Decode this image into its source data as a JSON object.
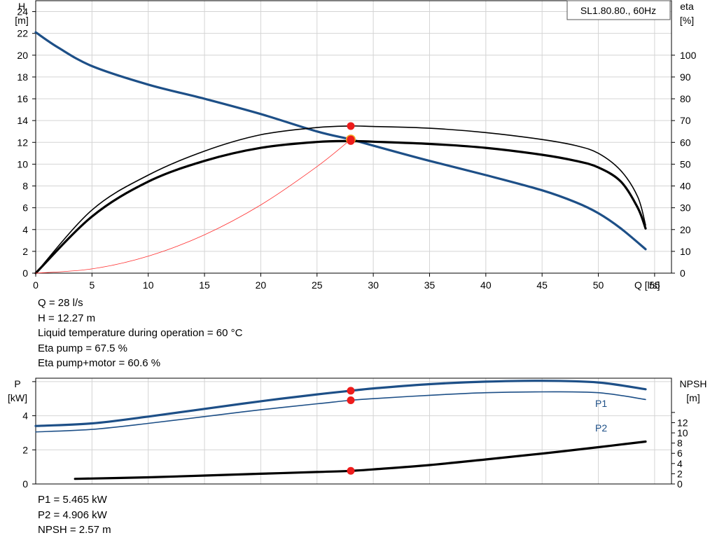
{
  "chart_data": [
    {
      "type": "line",
      "pump_label": "SL1.80.80., 60Hz",
      "ylabel": "H",
      "yunit": "[m]",
      "y2label": "eta",
      "y2unit": "[%]",
      "xlabel": "Q [l/s]",
      "xlim": [
        0,
        56.5
      ],
      "ylim": [
        0,
        25
      ],
      "y2lim": [
        0,
        125
      ],
      "x_ticks": [
        0,
        5,
        10,
        15,
        20,
        25,
        30,
        35,
        40,
        45,
        50,
        55
      ],
      "y_ticks": [
        0,
        2,
        4,
        6,
        8,
        10,
        12,
        14,
        16,
        18,
        20,
        22,
        24
      ],
      "y2_ticks": [
        0,
        10,
        20,
        30,
        40,
        50,
        60,
        70,
        80,
        90,
        100
      ],
      "grid": true,
      "series": [
        {
          "color": "#1d4f87",
          "axis": "left",
          "x": [
            0,
            2,
            5,
            10,
            15,
            20,
            25,
            28,
            30,
            35,
            40,
            45,
            48,
            50,
            52,
            54.2
          ],
          "y": [
            22.1,
            20.7,
            19.0,
            17.3,
            16.0,
            14.6,
            13.0,
            12.27,
            11.7,
            10.3,
            9.0,
            7.6,
            6.5,
            5.5,
            4.1,
            2.2
          ]
        },
        {
          "color": "#000000",
          "axis": "right",
          "x": [
            0,
            5,
            10,
            15,
            20,
            25,
            28,
            30,
            35,
            40,
            45,
            48,
            50,
            52,
            53.5,
            54.2
          ],
          "y": [
            0,
            29,
            45,
            56,
            63.5,
            66.8,
            67.5,
            67.3,
            66.5,
            64.5,
            61.3,
            58.5,
            55.0,
            47.0,
            35.0,
            22.0
          ]
        },
        {
          "color": "#000000",
          "axis": "right",
          "x": [
            0,
            5,
            10,
            15,
            20,
            25,
            28,
            30,
            35,
            40,
            45,
            48,
            50,
            52,
            53.5,
            54.2
          ],
          "y": [
            0,
            26,
            42,
            51.5,
            57.5,
            60.2,
            60.6,
            60.3,
            59.3,
            57.5,
            54.3,
            51.5,
            48.5,
            42.0,
            30.0,
            20.5
          ]
        },
        {
          "color": "#ff3030",
          "axis": "left",
          "x": [
            0,
            5,
            10,
            15,
            20,
            25,
            28
          ],
          "y": [
            0,
            0.39,
            1.56,
            3.52,
            6.26,
            9.78,
            12.27
          ]
        }
      ],
      "markers": [
        {
          "x": 28,
          "y": 12.27,
          "axis": "left",
          "color": "#ee1c1c"
        },
        {
          "x": 28,
          "y": 67.5,
          "axis": "right",
          "color": "#ee1c1c"
        },
        {
          "x": 28,
          "y": 60.6,
          "axis": "right",
          "color": "#ee1c1c"
        }
      ]
    },
    {
      "type": "line",
      "ylabel": "P",
      "yunit": "[kW]",
      "y2label": "NPSH",
      "y2unit": "[m]",
      "xlim": [
        0,
        56.5
      ],
      "ylim": [
        0,
        6.2
      ],
      "y2lim": [
        0,
        20.7
      ],
      "y_ticks": [
        0,
        2,
        4,
        6
      ],
      "y_tick_labels": [
        "0",
        "2",
        "4",
        ""
      ],
      "y2_ticks": [
        0,
        2,
        4,
        6,
        8,
        10,
        12,
        14
      ],
      "y2_tick_labels": [
        "0",
        "2",
        "4",
        "6",
        "8",
        "10",
        "12",
        ""
      ],
      "grid": true,
      "series": [
        {
          "name": "P1",
          "color": "#1d4f87",
          "axis": "left",
          "x": [
            0,
            5,
            10,
            15,
            20,
            25,
            28,
            30,
            35,
            40,
            45,
            50,
            54.2
          ],
          "y": [
            3.4,
            3.55,
            3.95,
            4.4,
            4.85,
            5.25,
            5.465,
            5.6,
            5.85,
            6.0,
            6.05,
            5.95,
            5.55
          ]
        },
        {
          "name": "P2",
          "color": "#1d4f87",
          "axis": "left",
          "x": [
            0,
            5,
            10,
            15,
            20,
            25,
            28,
            30,
            35,
            40,
            45,
            50,
            54.2
          ],
          "y": [
            3.05,
            3.2,
            3.55,
            3.95,
            4.35,
            4.7,
            4.906,
            5.0,
            5.2,
            5.35,
            5.4,
            5.35,
            4.95
          ]
        },
        {
          "name": "NPSH",
          "color": "#000000",
          "axis": "right",
          "x": [
            3.5,
            10,
            15,
            20,
            25,
            28,
            30,
            35,
            40,
            45,
            50,
            54.2
          ],
          "y": [
            1.0,
            1.3,
            1.65,
            2.0,
            2.35,
            2.57,
            2.85,
            3.7,
            4.8,
            5.95,
            7.2,
            8.3
          ]
        }
      ],
      "markers": [
        {
          "x": 28,
          "y": 5.465,
          "axis": "left",
          "color": "#ee1c1c"
        },
        {
          "x": 28,
          "y": 4.906,
          "axis": "left",
          "color": "#ee1c1c"
        },
        {
          "x": 28,
          "y": 2.57,
          "axis": "right",
          "color": "#ee1c1c"
        }
      ]
    }
  ],
  "duty_point": {
    "q": "Q = 28 l/s",
    "h": "H = 12.27 m",
    "temperature": "Liquid temperature during operation = 60 °C",
    "eta_pump": "Eta pump = 67.5 %",
    "eta_pump_motor": "Eta pump+motor = 60.6 %"
  },
  "power_point": {
    "p1": "P1 = 5.465 kW",
    "p2": "P2 = 4.906 kW",
    "npsh": "NPSH = 2.57 m"
  }
}
